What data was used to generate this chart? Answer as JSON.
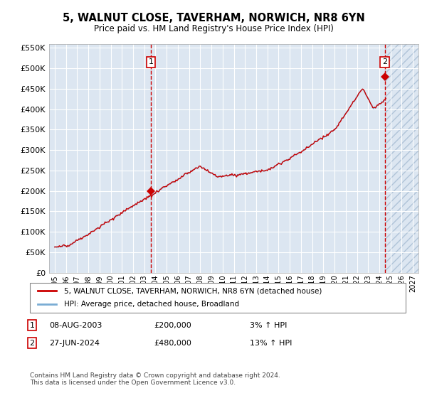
{
  "title": "5, WALNUT CLOSE, TAVERHAM, NORWICH, NR8 6YN",
  "subtitle": "Price paid vs. HM Land Registry's House Price Index (HPI)",
  "ylim": [
    0,
    560000
  ],
  "yticks": [
    0,
    50000,
    100000,
    150000,
    200000,
    250000,
    300000,
    350000,
    400000,
    450000,
    500000,
    550000
  ],
  "ytick_labels": [
    "£0",
    "£50K",
    "£100K",
    "£150K",
    "£200K",
    "£250K",
    "£300K",
    "£350K",
    "£400K",
    "£450K",
    "£500K",
    "£550K"
  ],
  "background_color": "#dce6f1",
  "grid_color": "#ffffff",
  "sale1_date_num": 2003.59,
  "sale1_price": 200000,
  "sale1_label": "1",
  "sale1_date_str": "08-AUG-2003",
  "sale1_price_str": "£200,000",
  "sale1_hpi": "3% ↑ HPI",
  "sale2_date_num": 2024.49,
  "sale2_price": 480000,
  "sale2_label": "2",
  "sale2_date_str": "27-JUN-2024",
  "sale2_price_str": "£480,000",
  "sale2_hpi": "13% ↑ HPI",
  "hpi_line_color": "#7aadd4",
  "price_line_color": "#cc0000",
  "sale_marker_color": "#cc0000",
  "legend_label_price": "5, WALNUT CLOSE, TAVERHAM, NORWICH, NR8 6YN (detached house)",
  "legend_label_hpi": "HPI: Average price, detached house, Broadland",
  "footer": "Contains HM Land Registry data © Crown copyright and database right 2024.\nThis data is licensed under the Open Government Licence v3.0.",
  "xlim_start": 1994.5,
  "xlim_end": 2027.5,
  "hatch_start": 2024.5,
  "hatch_end": 2027.5
}
